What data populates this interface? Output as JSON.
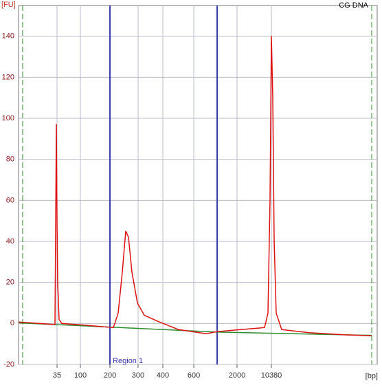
{
  "chart_data": {
    "type": "line",
    "title": "CG DNA",
    "y_label": "[FU]",
    "x_label": "[bp]",
    "xlim": [
      40,
      110
    ],
    "ylim": [
      -20,
      155
    ],
    "yticks": [
      -20,
      0,
      20,
      40,
      60,
      80,
      100,
      120,
      140
    ],
    "xticks": [
      {
        "value": 47.51,
        "label": "35"
      },
      {
        "value": 52.07,
        "label": "100"
      },
      {
        "value": 57.84,
        "label": "200"
      },
      {
        "value": 63.33,
        "label": "300"
      },
      {
        "value": 68.16,
        "label": "400"
      },
      {
        "value": 74.2,
        "label": "600"
      },
      {
        "value": 82.64,
        "label": "2000"
      },
      {
        "value": 89.35,
        "label": "10380"
      }
    ],
    "grid": true,
    "region": {
      "label": "Region 1",
      "start": 57.84,
      "end": 78.76,
      "color": "#3a3aa8"
    },
    "markers": {
      "values": [
        40.8,
        108.93
      ],
      "color": "#2e8b2e"
    },
    "series": [
      {
        "color": "#2e8b2e",
        "x": [
          40,
          78.76,
          108.93
        ],
        "values": [
          0.3,
          -4.2,
          -5.8
        ]
      },
      {
        "color": "#dd1111",
        "x": [
          40,
          47.11,
          47.38,
          47.51,
          47.64,
          47.91,
          48.45,
          53.81,
          58.51,
          59.44,
          60.25,
          60.92,
          61.46,
          62.13,
          63.2,
          64.54,
          67.22,
          71.25,
          76.61,
          78.76,
          83.31,
          88.01,
          88.68,
          89.08,
          89.35,
          89.62,
          89.89,
          90.29,
          91.36,
          96.73,
          103.43,
          108.93
        ],
        "values": [
          0.7,
          -0.5,
          97,
          50,
          20,
          2,
          0,
          -1,
          -2,
          5,
          25,
          45,
          42,
          25,
          10,
          4,
          1,
          -3,
          -5,
          -4,
          -3,
          -2,
          5,
          60,
          140,
          110,
          40,
          5,
          -3,
          -4.5,
          -5.5,
          -6
        ]
      }
    ]
  }
}
